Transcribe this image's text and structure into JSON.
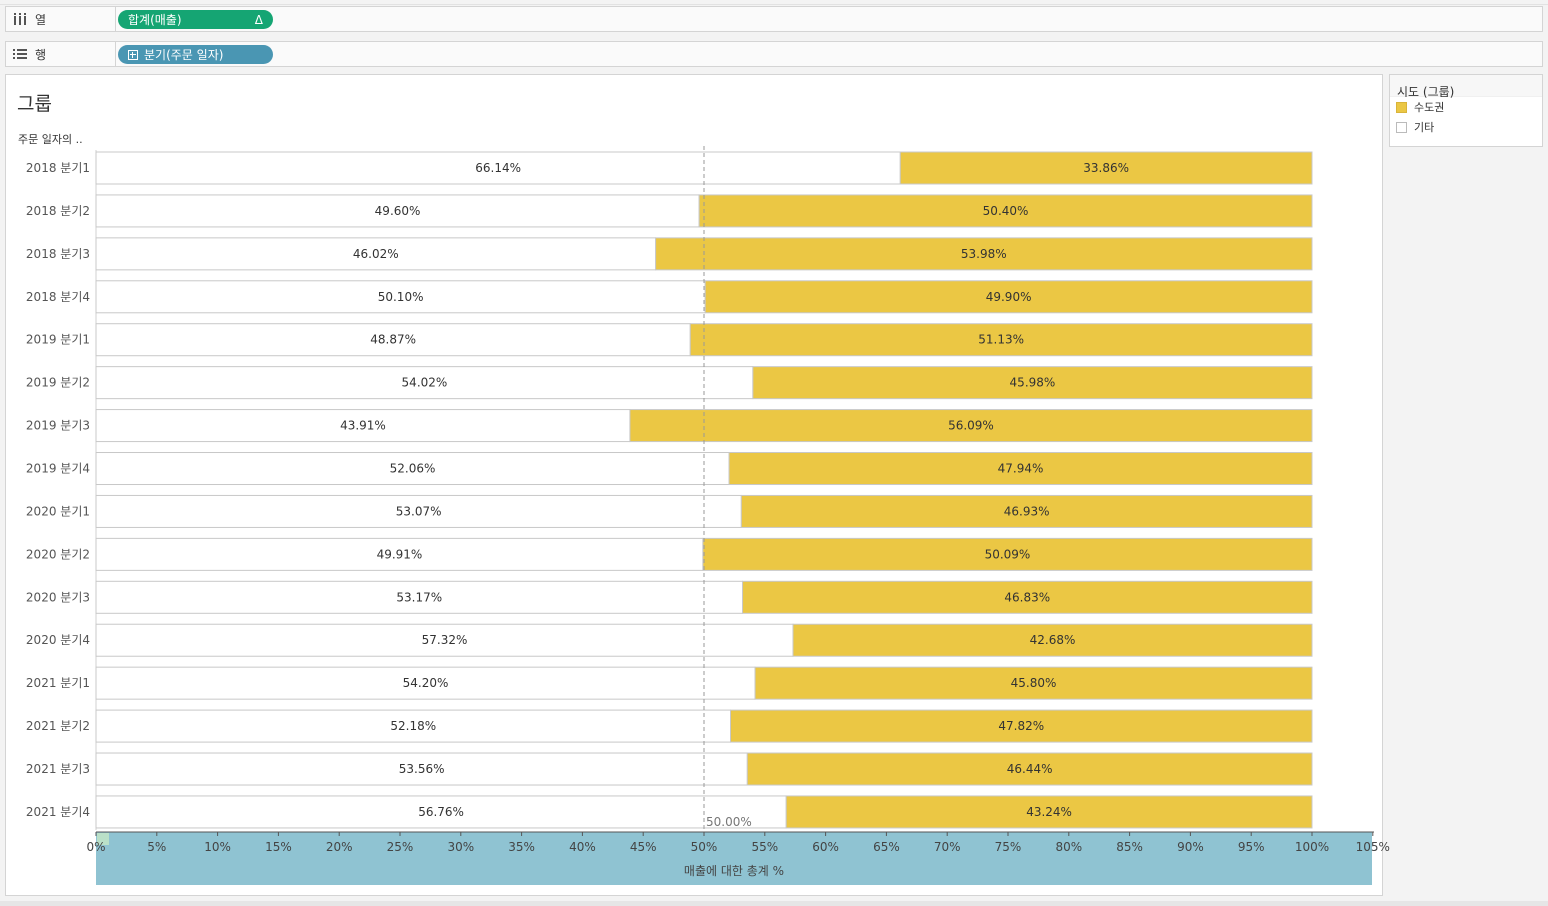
{
  "shelves": {
    "columns": {
      "label": "열",
      "pill": "합계(매출)",
      "pill_marker": "Δ"
    },
    "rows": {
      "label": "행",
      "pill": "분기(주문 일자)"
    }
  },
  "viz": {
    "title": "그룹",
    "row_header": "주문 일자의 .."
  },
  "legend": {
    "title": "시도 (그룹)",
    "items": [
      {
        "label": "수도권",
        "color": "#ebc744"
      },
      {
        "label": "기타",
        "color": "#ffffff"
      }
    ]
  },
  "colors": {
    "capital": "#ebc744",
    "other": "#ffffff",
    "axis_band": "#8fc3d2"
  },
  "chart_data": {
    "type": "bar",
    "orientation": "horizontal-stacked-100",
    "categories": [
      "2018 분기1",
      "2018 분기2",
      "2018 분기3",
      "2018 분기4",
      "2019 분기1",
      "2019 분기2",
      "2019 분기3",
      "2019 분기4",
      "2020 분기1",
      "2020 분기2",
      "2020 분기3",
      "2020 분기4",
      "2021 분기1",
      "2021 분기2",
      "2021 분기3",
      "2021 분기4"
    ],
    "series": [
      {
        "name": "기타",
        "values": [
          66.14,
          49.6,
          46.02,
          50.1,
          48.87,
          54.02,
          43.91,
          52.06,
          53.07,
          49.91,
          53.17,
          57.32,
          54.2,
          52.18,
          53.56,
          56.76
        ],
        "labels": [
          "66.14%",
          "49.60%",
          "46.02%",
          "50.10%",
          "48.87%",
          "54.02%",
          "43.91%",
          "52.06%",
          "53.07%",
          "49.91%",
          "53.17%",
          "57.32%",
          "54.20%",
          "52.18%",
          "53.56%",
          "56.76%"
        ]
      },
      {
        "name": "수도권",
        "values": [
          33.86,
          50.4,
          53.98,
          49.9,
          51.13,
          45.98,
          56.09,
          47.94,
          46.93,
          50.09,
          46.83,
          42.68,
          45.8,
          47.82,
          46.44,
          43.24
        ],
        "labels": [
          "33.86%",
          "50.40%",
          "53.98%",
          "49.90%",
          "51.13%",
          "45.98%",
          "56.09%",
          "47.94%",
          "46.93%",
          "50.09%",
          "46.83%",
          "42.68%",
          "45.80%",
          "47.82%",
          "46.44%",
          "43.24%"
        ]
      }
    ],
    "xlabel": "매출에 대한 총계 %",
    "xlim": [
      0,
      105
    ],
    "x_ticks": [
      "0%",
      "5%",
      "10%",
      "15%",
      "20%",
      "25%",
      "30%",
      "35%",
      "40%",
      "45%",
      "50%",
      "55%",
      "60%",
      "65%",
      "70%",
      "75%",
      "80%",
      "85%",
      "90%",
      "95%",
      "100%",
      "105%"
    ],
    "reference_line": {
      "value": 50,
      "label": "50.00%"
    }
  }
}
